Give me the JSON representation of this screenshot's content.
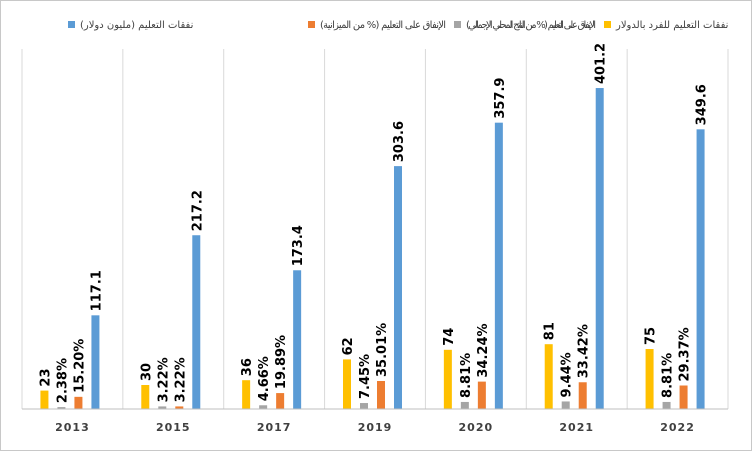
{
  "chart_data": {
    "type": "bar",
    "categories": [
      "2013",
      "2015",
      "2017",
      "2019",
      "2020",
      "2021",
      "2022"
    ],
    "series": [
      {
        "name": "نفقات التعليم للفرد بالدولار",
        "color": "#FFC000",
        "values": [
          23,
          30,
          36,
          62,
          74,
          81,
          75
        ],
        "labels": [
          "23",
          "30",
          "36",
          "62",
          "74",
          "81",
          "75"
        ]
      },
      {
        "name": "الإنفاق على التعليم (% من الناتج المحلي الإجمالي)",
        "color": "#A5A5A5",
        "values": [
          2.38,
          3.22,
          4.66,
          7.45,
          8.81,
          9.44,
          8.81
        ],
        "labels": [
          "2.38%",
          "3.22%",
          "4.66%",
          "7.45%",
          "8.81%",
          "9.44%",
          "8.81%"
        ]
      },
      {
        "name": "الإنفاق على التعليم (% من الميزانية)",
        "color": "#ED7D31",
        "values": [
          15.2,
          3.22,
          19.89,
          35.01,
          34.24,
          33.42,
          29.37
        ],
        "labels": [
          "15.20%",
          "3.22%",
          "19.89%",
          "35.01%",
          "34.24%",
          "33.42%",
          "29.37%"
        ]
      },
      {
        "name": "نفقات التعليم (مليون دولار)",
        "color": "#5B9BD5",
        "values": [
          117.1,
          217.2,
          173.4,
          303.6,
          357.9,
          401.2,
          349.6
        ],
        "labels": [
          "117.1",
          "217.2",
          "173.4",
          "303.6",
          "357.9",
          "401.2",
          "349.6"
        ]
      }
    ],
    "title": "",
    "xlabel": "",
    "ylabel": "",
    "ylim": [
      0,
      450
    ],
    "grid": "vertical separators between categories",
    "legend_position": "top"
  },
  "legend": {
    "items": [
      {
        "label": "نفقات التعليم (مليون دولار)",
        "color": "#5B9BD5"
      },
      {
        "label": "الإنفاق على التعليم (% من الميزانية)",
        "color": "#ED7D31"
      },
      {
        "label": "الإنفاق على التعليم (% من الناتج المحلي الإجمالي)",
        "color": "#A5A5A5"
      },
      {
        "label": "نفقات التعليم للفرد بالدولار",
        "color": "#FFC000"
      }
    ]
  }
}
